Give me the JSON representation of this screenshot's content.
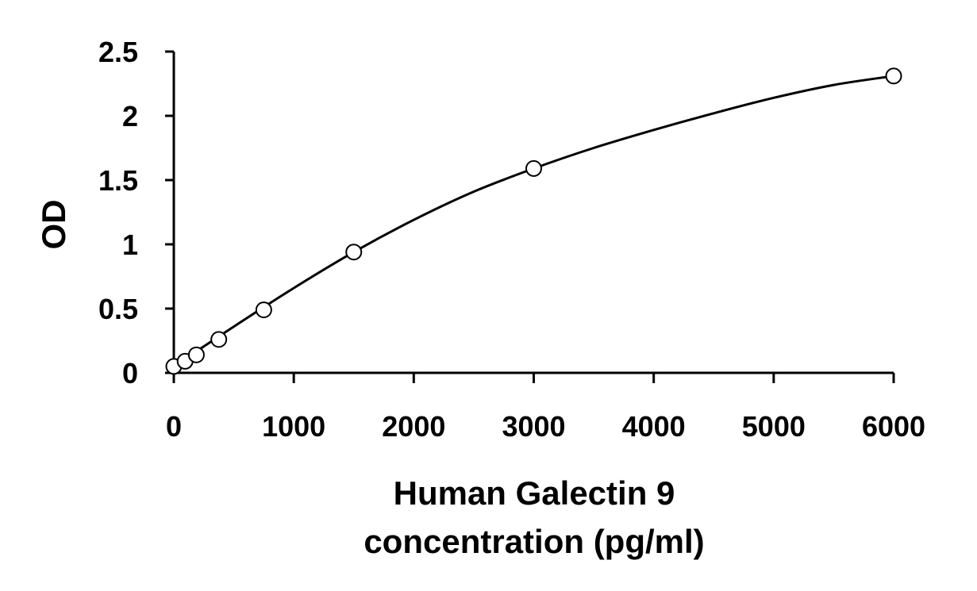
{
  "chart_data": {
    "type": "scatter",
    "title": "",
    "xlabel_line1": "Human Galectin 9",
    "xlabel_line2": "concentration (pg/ml)",
    "ylabel": "OD",
    "xlim": [
      0,
      6000
    ],
    "ylim": [
      0,
      2.5
    ],
    "x_ticks": [
      0,
      1000,
      2000,
      3000,
      4000,
      5000,
      6000
    ],
    "x_tick_labels": [
      "0",
      "1000",
      "2000",
      "3000",
      "4000",
      "5000",
      "6000"
    ],
    "y_ticks": [
      0,
      0.5,
      1,
      1.5,
      2,
      2.5
    ],
    "y_tick_labels": [
      "0",
      "0.5",
      "1",
      "1.5",
      "2",
      "2.5"
    ],
    "grid": false,
    "legend": "none",
    "series": [
      {
        "marker": "open-circle",
        "x": [
          0,
          94,
          188,
          375,
          750,
          1500,
          3000,
          6000
        ],
        "y": [
          0.05,
          0.09,
          0.14,
          0.26,
          0.49,
          0.94,
          1.59,
          2.31
        ]
      }
    ],
    "fit_curve": {
      "x": [
        0,
        500,
        1000,
        1500,
        2000,
        2500,
        3000,
        3500,
        4000,
        4500,
        5000,
        5500,
        6000
      ],
      "y": [
        0.05,
        0.36,
        0.66,
        0.94,
        1.19,
        1.41,
        1.59,
        1.75,
        1.89,
        2.02,
        2.14,
        2.24,
        2.31
      ]
    },
    "colors": {
      "line": "#000000",
      "marker_fill": "#ffffff"
    }
  }
}
